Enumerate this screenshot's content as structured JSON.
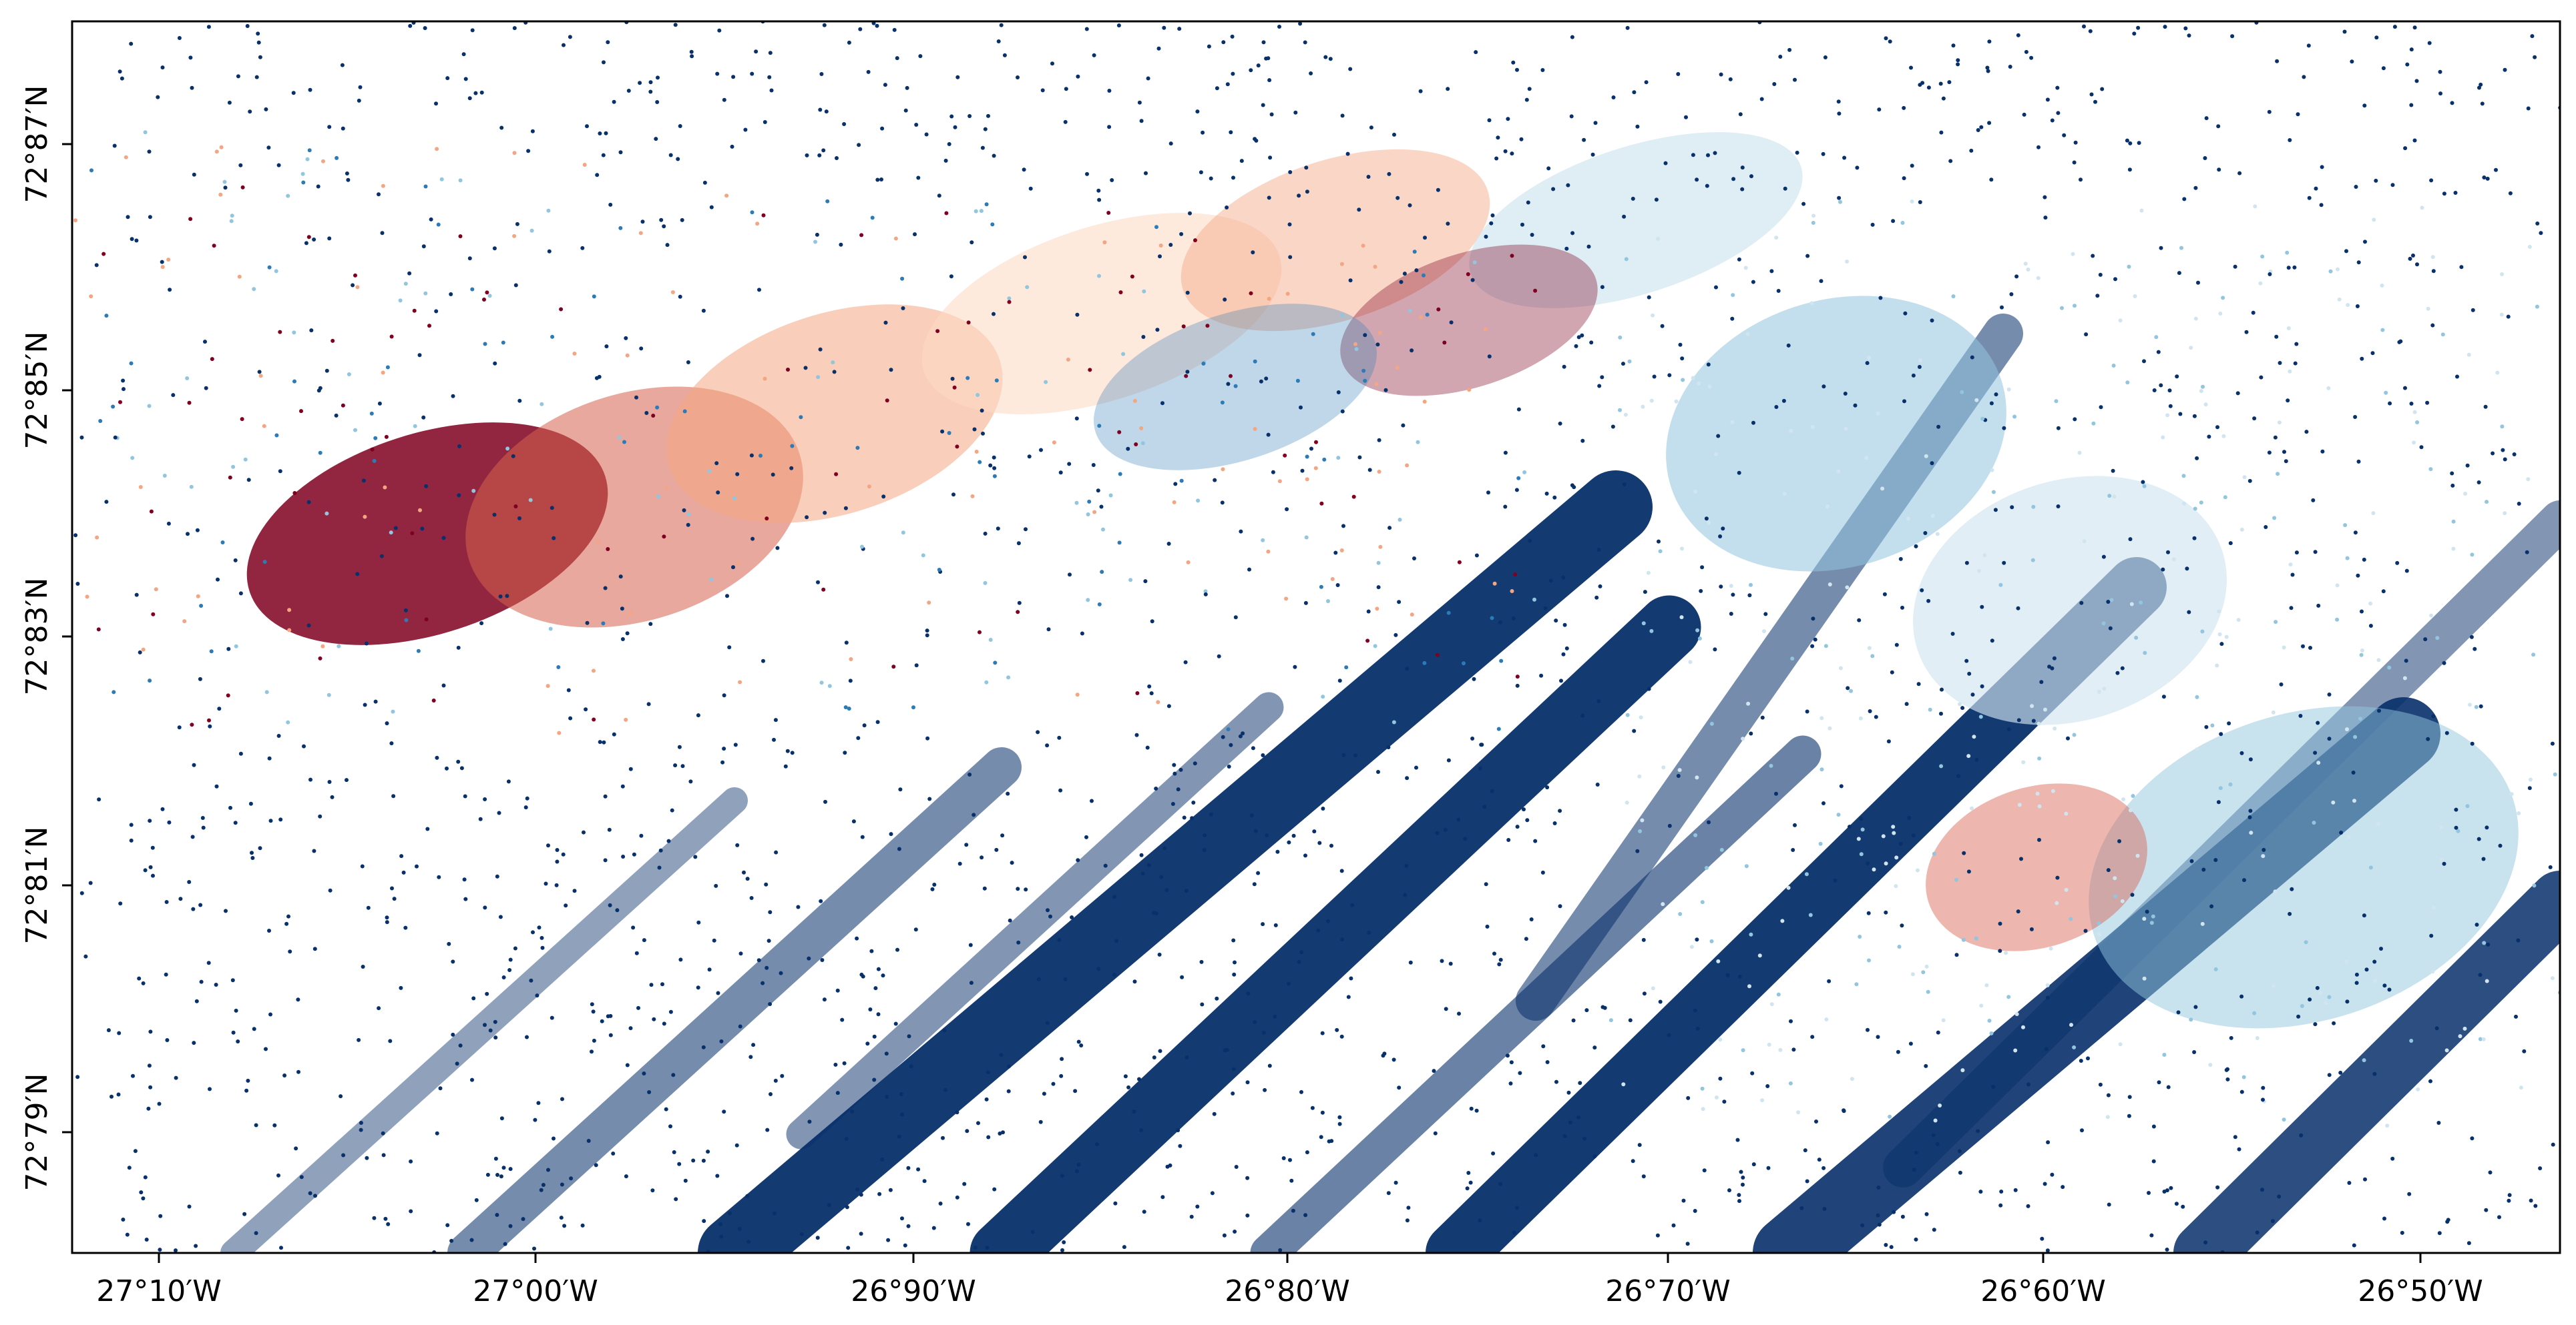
{
  "map": {
    "x_tick_labels": [
      "27°10′W",
      "27°00′W",
      "26°90′W",
      "26°80′W",
      "26°70′W",
      "26°60′W",
      "26°50′W"
    ],
    "y_tick_labels": [
      "72°87′N",
      "72°85′N",
      "72°83′N",
      "72°81′N",
      "72°79′N"
    ],
    "colormap": "RdBu_r",
    "colors": {
      "dark_blue": "#08306b",
      "mid_blue": "#2c7bb6",
      "light_blue": "#92c5de",
      "pale_blue": "#d1e5f0",
      "pale_red": "#fddbc7",
      "light_red": "#f4a582",
      "mid_red": "#d6604d",
      "dark_red": "#7f0020"
    }
  }
}
